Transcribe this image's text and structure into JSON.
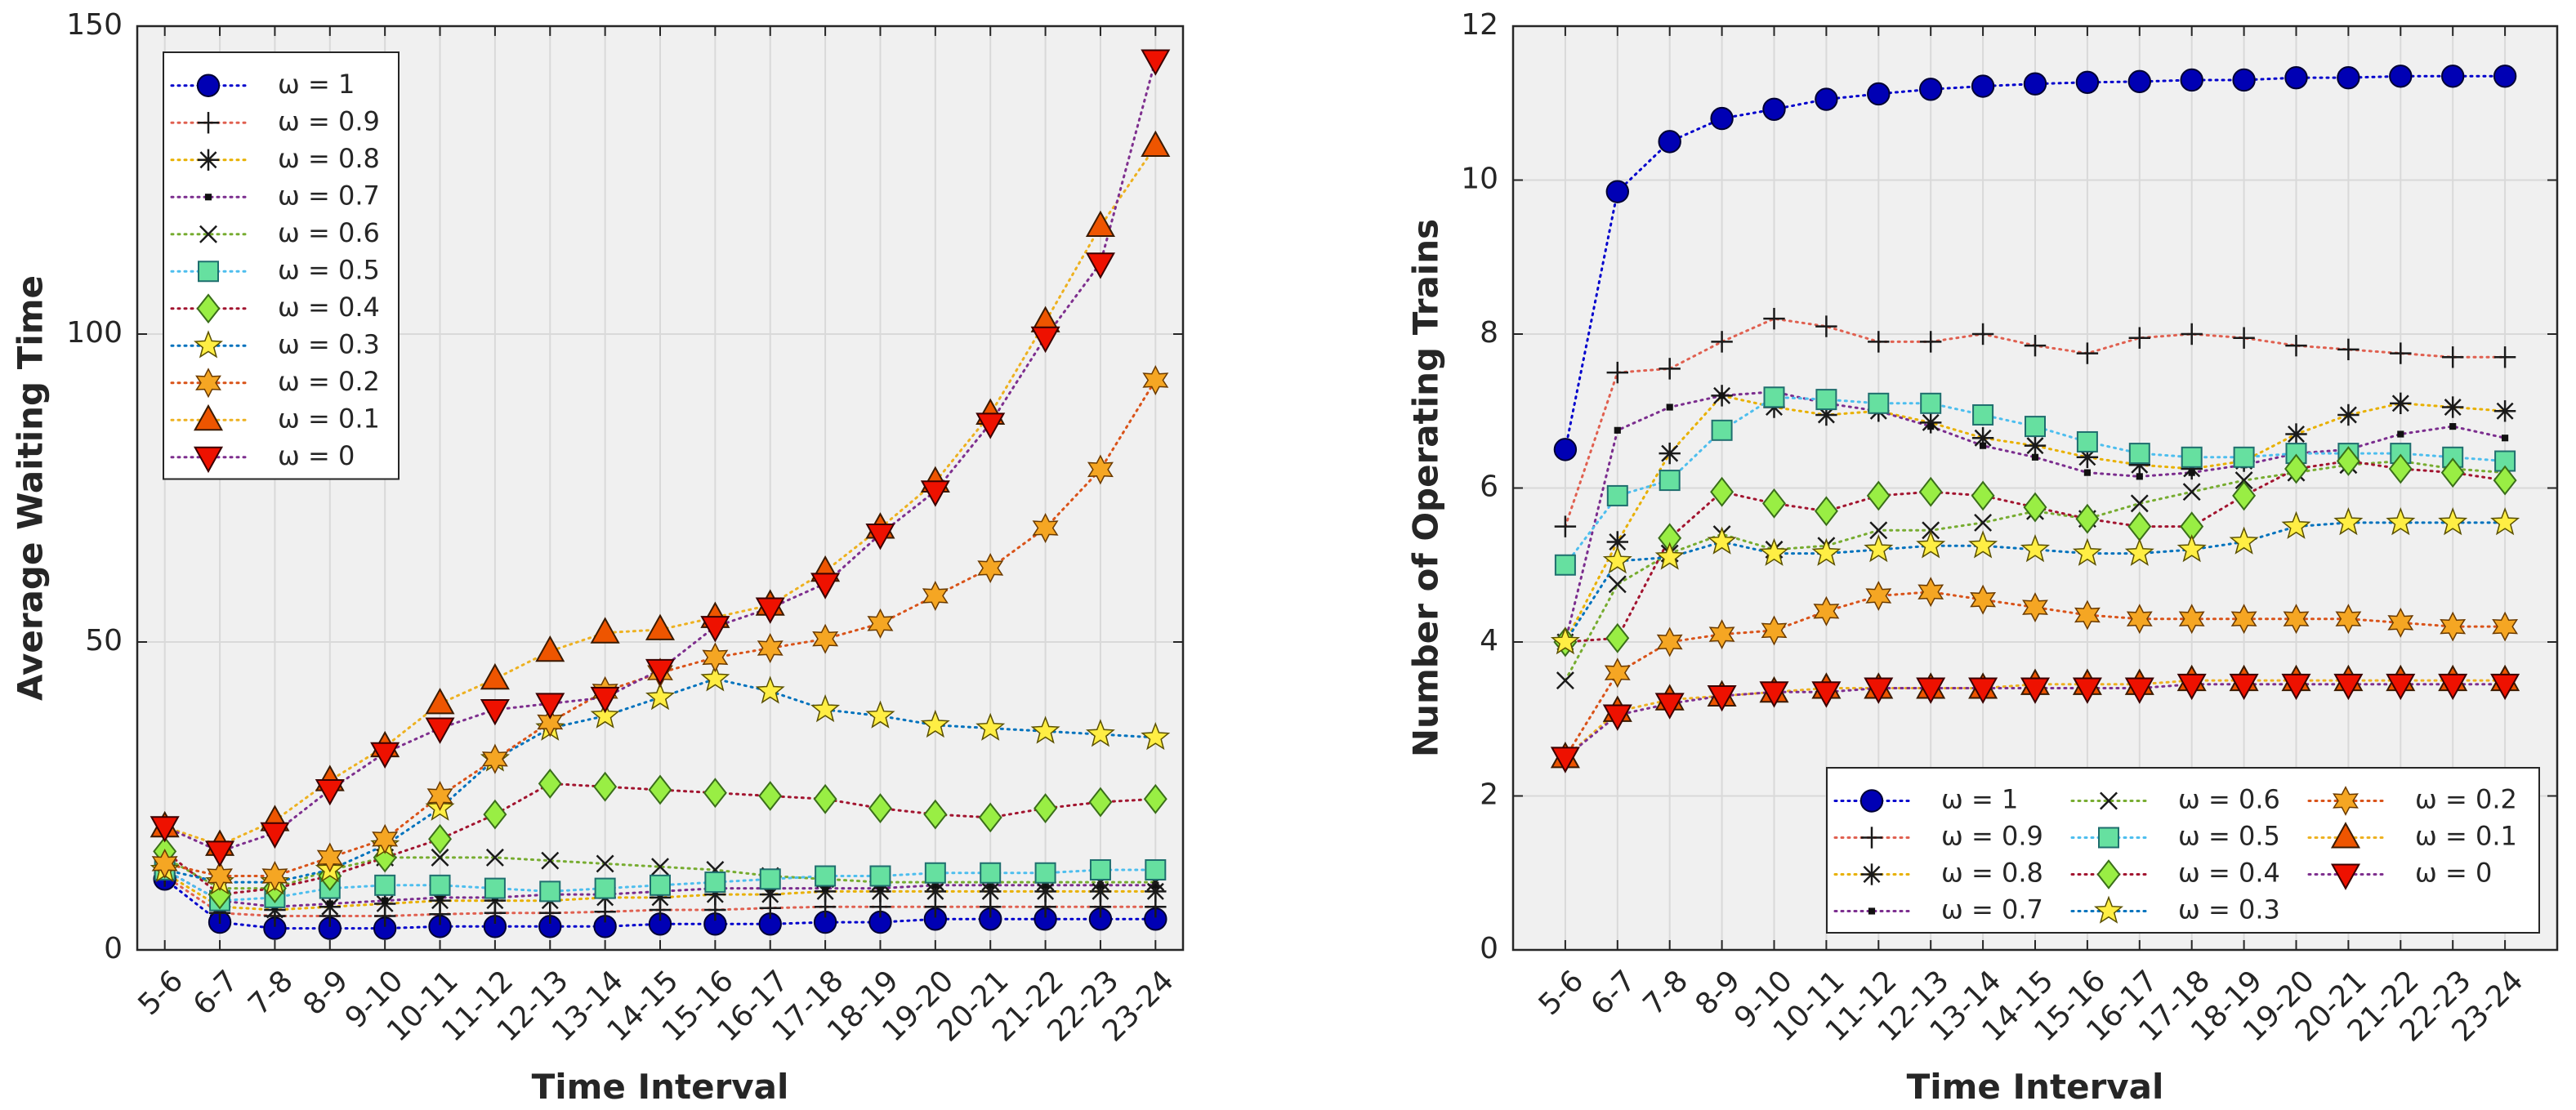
{
  "chart_data": [
    {
      "type": "line",
      "title": "",
      "xlabel": "Time Interval",
      "ylabel": "Average Waiting Time",
      "ylim": [
        0,
        150
      ],
      "yticks": [
        0,
        50,
        100,
        150
      ],
      "grid": true,
      "legend_position": "top-left",
      "legend_columns": 1,
      "categories": [
        "5-6",
        "6-7",
        "7-8",
        "8-9",
        "9-10",
        "10-11",
        "11-12",
        "12-13",
        "13-14",
        "14-15",
        "15-16",
        "16-17",
        "17-18",
        "18-19",
        "19-20",
        "20-21",
        "21-22",
        "22-23",
        "23-24"
      ],
      "series": [
        {
          "name": "ω = 1",
          "label_value": "1",
          "color": "#0000cc",
          "marker": "circle",
          "values": [
            11.5,
            4.5,
            3.5,
            3.5,
            3.5,
            3.8,
            3.8,
            3.8,
            3.8,
            4.2,
            4.2,
            4.2,
            4.5,
            4.5,
            5,
            5,
            5,
            5,
            5
          ]
        },
        {
          "name": "ω = 0.9",
          "label_value": "0.9",
          "color": "#e06050",
          "marker": "plus",
          "values": [
            12,
            6,
            5.5,
            5.5,
            5.5,
            5.8,
            6,
            6,
            6.2,
            6.5,
            6.5,
            6.8,
            7,
            7,
            7,
            7,
            7,
            7,
            7
          ]
        },
        {
          "name": "ω = 0.8",
          "label_value": "0.8",
          "color": "#e8b000",
          "marker": "asterisk",
          "values": [
            12.5,
            7,
            6.5,
            7,
            7.5,
            8,
            8,
            8,
            8.5,
            8.5,
            9,
            9,
            9.5,
            9.5,
            9.5,
            9.5,
            9.5,
            9.5,
            9.5
          ]
        },
        {
          "name": "ω = 0.7",
          "label_value": "0.7",
          "color": "#7b2d8e",
          "marker": "point",
          "values": [
            13,
            8,
            7,
            7.5,
            8,
            8.5,
            8.5,
            9,
            9,
            9.5,
            10,
            10,
            10,
            10,
            10.5,
            10.5,
            10.5,
            10.5,
            10.5
          ]
        },
        {
          "name": "ω = 0.6",
          "label_value": "0.6",
          "color": "#77ac30",
          "marker": "x",
          "values": [
            15,
            10,
            10,
            13,
            15,
            15,
            15,
            14.5,
            14,
            13.5,
            13,
            12,
            11.5,
            11,
            11,
            11,
            11,
            11,
            11
          ]
        },
        {
          "name": "ω = 0.5",
          "label_value": "0.5",
          "color": "#4dbeee",
          "marker": "square",
          "values": [
            13,
            8,
            8.5,
            10,
            10.5,
            10.5,
            10,
            9.5,
            10,
            10.5,
            11,
            11.5,
            12,
            12,
            12.5,
            12.5,
            12.5,
            13,
            13
          ]
        },
        {
          "name": "ω = 0.4",
          "label_value": "0.4",
          "color": "#a2142f",
          "marker": "diamond",
          "values": [
            16,
            9,
            10,
            12,
            15,
            18,
            22,
            27,
            26.5,
            26,
            25.5,
            25,
            24.5,
            23,
            22,
            21.5,
            23,
            24,
            24.5
          ]
        },
        {
          "name": "ω = 0.3",
          "label_value": "0.3",
          "color": "#0072bd",
          "marker": "star",
          "values": [
            13,
            11,
            11,
            13,
            17,
            23,
            31,
            36,
            38,
            41,
            44,
            42,
            39,
            38,
            36.5,
            36,
            35.5,
            35,
            34.5
          ]
        },
        {
          "name": "ω = 0.2",
          "label_value": "0.2",
          "color": "#d95319",
          "marker": "hexagram",
          "values": [
            14,
            12,
            12,
            15,
            18,
            25,
            31,
            37,
            42,
            45,
            47.5,
            49,
            50.5,
            53,
            57.5,
            62,
            68.5,
            78,
            92.5
          ]
        },
        {
          "name": "ω = 0.1",
          "label_value": "0.1",
          "color": "#edb120",
          "marker": "triangle-up",
          "values": [
            20,
            17,
            21,
            27.5,
            33,
            40,
            44,
            48.5,
            51.5,
            52,
            54,
            56,
            61.5,
            68.5,
            76,
            87,
            102,
            117.5,
            130.5
          ]
        },
        {
          "name": "ω = 0",
          "label_value": "0",
          "color": "#7e2f8e",
          "marker": "triangle-down",
          "values": [
            20,
            16,
            19,
            26,
            32,
            36,
            39,
            40,
            41,
            45.5,
            52.5,
            55.5,
            59.5,
            67.5,
            74.5,
            85.5,
            99.5,
            111.5,
            144.5
          ]
        }
      ]
    },
    {
      "type": "line",
      "title": "",
      "xlabel": "Time Interval",
      "ylabel": "Number of Operating Trains",
      "ylim": [
        0,
        12
      ],
      "yticks": [
        0,
        2,
        4,
        6,
        8,
        10,
        12
      ],
      "grid": true,
      "legend_position": "bottom-right",
      "legend_columns": 3,
      "categories": [
        "5-6",
        "6-7",
        "7-8",
        "8-9",
        "9-10",
        "10-11",
        "11-12",
        "12-13",
        "13-14",
        "14-15",
        "15-16",
        "16-17",
        "17-18",
        "18-19",
        "19-20",
        "20-21",
        "21-22",
        "22-23",
        "23-24"
      ],
      "series": [
        {
          "name": "ω = 1",
          "label_value": "1",
          "color": "#0000cc",
          "marker": "circle",
          "values": [
            6.5,
            9.85,
            10.5,
            10.8,
            10.92,
            11.05,
            11.12,
            11.18,
            11.22,
            11.25,
            11.27,
            11.28,
            11.3,
            11.3,
            11.33,
            11.33,
            11.35,
            11.35,
            11.35
          ]
        },
        {
          "name": "ω = 0.9",
          "label_value": "0.9",
          "color": "#e06050",
          "marker": "plus",
          "values": [
            5.5,
            7.5,
            7.55,
            7.9,
            8.2,
            8.1,
            7.9,
            7.9,
            8.0,
            7.85,
            7.75,
            7.95,
            8.0,
            7.95,
            7.85,
            7.8,
            7.75,
            7.7,
            7.7
          ]
        },
        {
          "name": "ω = 0.8",
          "label_value": "0.8",
          "color": "#e8b000",
          "marker": "asterisk",
          "values": [
            4,
            5.3,
            6.45,
            7.2,
            7.05,
            6.95,
            7.0,
            6.85,
            6.65,
            6.55,
            6.4,
            6.3,
            6.25,
            6.35,
            6.7,
            6.95,
            7.1,
            7.05,
            7.0
          ]
        },
        {
          "name": "ω = 0.7",
          "label_value": "0.7",
          "color": "#7b2d8e",
          "marker": "point",
          "values": [
            4,
            6.75,
            7.05,
            7.2,
            7.25,
            7.1,
            7.0,
            6.8,
            6.55,
            6.4,
            6.2,
            6.15,
            6.2,
            6.3,
            6.45,
            6.5,
            6.7,
            6.8,
            6.65
          ]
        },
        {
          "name": "ω = 0.6",
          "label_value": "0.6",
          "color": "#77ac30",
          "marker": "x",
          "values": [
            3.5,
            4.75,
            5.15,
            5.4,
            5.2,
            5.25,
            5.45,
            5.45,
            5.55,
            5.7,
            5.6,
            5.8,
            5.95,
            6.1,
            6.2,
            6.3,
            6.35,
            6.25,
            6.2
          ]
        },
        {
          "name": "ω = 0.5",
          "label_value": "0.5",
          "color": "#4dbeee",
          "marker": "square",
          "values": [
            5,
            5.9,
            6.1,
            6.75,
            7.18,
            7.15,
            7.1,
            7.1,
            6.95,
            6.8,
            6.6,
            6.45,
            6.4,
            6.4,
            6.45,
            6.45,
            6.45,
            6.4,
            6.35
          ]
        },
        {
          "name": "ω = 0.4",
          "label_value": "0.4",
          "color": "#a2142f",
          "marker": "diamond",
          "values": [
            4,
            4.05,
            5.35,
            5.95,
            5.8,
            5.7,
            5.9,
            5.95,
            5.9,
            5.75,
            5.6,
            5.5,
            5.5,
            5.9,
            6.25,
            6.35,
            6.25,
            6.2,
            6.1
          ]
        },
        {
          "name": "ω = 0.3",
          "label_value": "0.3",
          "color": "#0072bd",
          "marker": "star",
          "values": [
            4,
            5.05,
            5.1,
            5.3,
            5.15,
            5.15,
            5.2,
            5.25,
            5.25,
            5.2,
            5.15,
            5.15,
            5.2,
            5.3,
            5.5,
            5.55,
            5.55,
            5.55,
            5.55
          ]
        },
        {
          "name": "ω = 0.2",
          "label_value": "0.2",
          "color": "#d95319",
          "marker": "hexagram",
          "values": [
            2.5,
            3.6,
            4.0,
            4.1,
            4.15,
            4.4,
            4.6,
            4.65,
            4.55,
            4.45,
            4.35,
            4.3,
            4.3,
            4.3,
            4.3,
            4.3,
            4.25,
            4.2,
            4.2
          ]
        },
        {
          "name": "ω = 0.1",
          "label_value": "0.1",
          "color": "#edb120",
          "marker": "triangle-up",
          "values": [
            2.5,
            3.1,
            3.25,
            3.3,
            3.35,
            3.4,
            3.4,
            3.4,
            3.4,
            3.45,
            3.45,
            3.45,
            3.5,
            3.5,
            3.5,
            3.5,
            3.5,
            3.5,
            3.5
          ]
        },
        {
          "name": "ω = 0",
          "label_value": "0",
          "color": "#7e2f8e",
          "marker": "triangle-down",
          "values": [
            2.5,
            3.05,
            3.2,
            3.3,
            3.35,
            3.35,
            3.4,
            3.4,
            3.4,
            3.4,
            3.4,
            3.4,
            3.45,
            3.45,
            3.45,
            3.45,
            3.45,
            3.45,
            3.45
          ]
        }
      ]
    }
  ],
  "marker_fill_colors": {
    "circle": "#0000b4",
    "square": "#66e0a0",
    "diamond": "#99ee44",
    "star": "#ffee44",
    "hexagram": "#f5a623",
    "triangle-up": "#ee5500",
    "triangle-down": "#ee1100"
  }
}
